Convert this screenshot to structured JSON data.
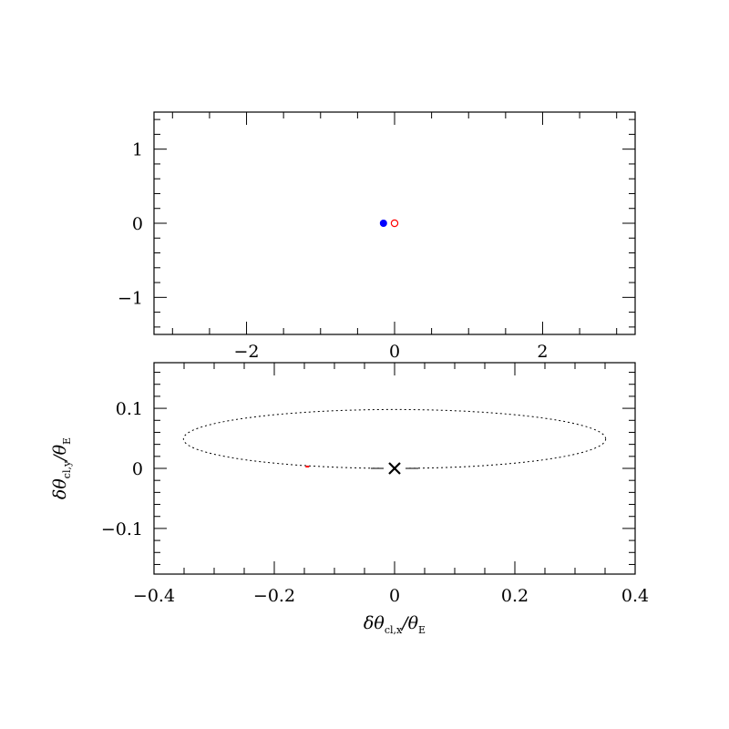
{
  "chart_data": [
    {
      "panel": "top",
      "type": "scatter",
      "title": "",
      "xlabel": "",
      "ylabel": "",
      "xlim": [
        -3.25,
        3.25
      ],
      "ylim": [
        -1.5,
        1.5
      ],
      "grid": false,
      "x_ticks": [
        -2,
        0,
        2
      ],
      "x_tick_labels": [
        "−2",
        "0",
        "2"
      ],
      "x_minor_step": 0.5,
      "y_ticks": [
        -1,
        0,
        1
      ],
      "y_tick_labels": [
        "−1",
        "0",
        "1"
      ],
      "y_minor_step": 0.2,
      "series": [
        {
          "name": "lens (filled blue dot)",
          "marker": "filled-circle",
          "color": "#0000ff",
          "points": [
            [
              -0.15,
              0
            ]
          ]
        },
        {
          "name": "source (open red circle)",
          "marker": "open-circle",
          "color": "#ff0000",
          "points": [
            [
              0,
              0
            ]
          ]
        }
      ]
    },
    {
      "panel": "bottom",
      "type": "line",
      "title": "",
      "xlabel": "δθ_cl,x/θ_E",
      "ylabel": "δθ_cl,y/θ_E",
      "xlim": [
        -0.4,
        0.4
      ],
      "ylim": [
        -0.176,
        0.176
      ],
      "grid": false,
      "x_ticks": [
        -0.4,
        -0.2,
        0,
        0.2,
        0.4
      ],
      "x_tick_labels": [
        "−0.4",
        "−0.2",
        "0",
        "0.2",
        "0.4"
      ],
      "x_minor_step": 0.05,
      "y_ticks": [
        -0.1,
        0,
        0.1
      ],
      "y_tick_labels": [
        "−0.1",
        "0",
        "0.1"
      ],
      "y_minor_step": 0.02,
      "series": [
        {
          "name": "centroid shift trajectory (dotted ellipse)",
          "style": "dotted",
          "color": "#000000",
          "ellipse": {
            "cx": 0.0,
            "cy": 0.049,
            "a": 0.351,
            "b": 0.049
          }
        },
        {
          "name": "current position",
          "marker": "dash",
          "color": "#ff0000",
          "points": [
            [
              -0.145,
              0.003
            ]
          ]
        },
        {
          "name": "origin",
          "marker": "x-cross",
          "color": "#000000",
          "points": [
            [
              0,
              0
            ]
          ]
        }
      ]
    }
  ],
  "labels": {
    "xlabel_main": "δθ",
    "xlabel_sub": "cl,x",
    "xlabel_div": "/θ",
    "xlabel_sub2": "E",
    "ylabel_main": "δθ",
    "ylabel_sub": "cl,y",
    "ylabel_div": "/θ",
    "ylabel_sub2": "E"
  },
  "colors": {
    "axes": "#000000",
    "lens": "#0000ff",
    "source": "#ff0000",
    "marker_current": "#ff0000"
  }
}
